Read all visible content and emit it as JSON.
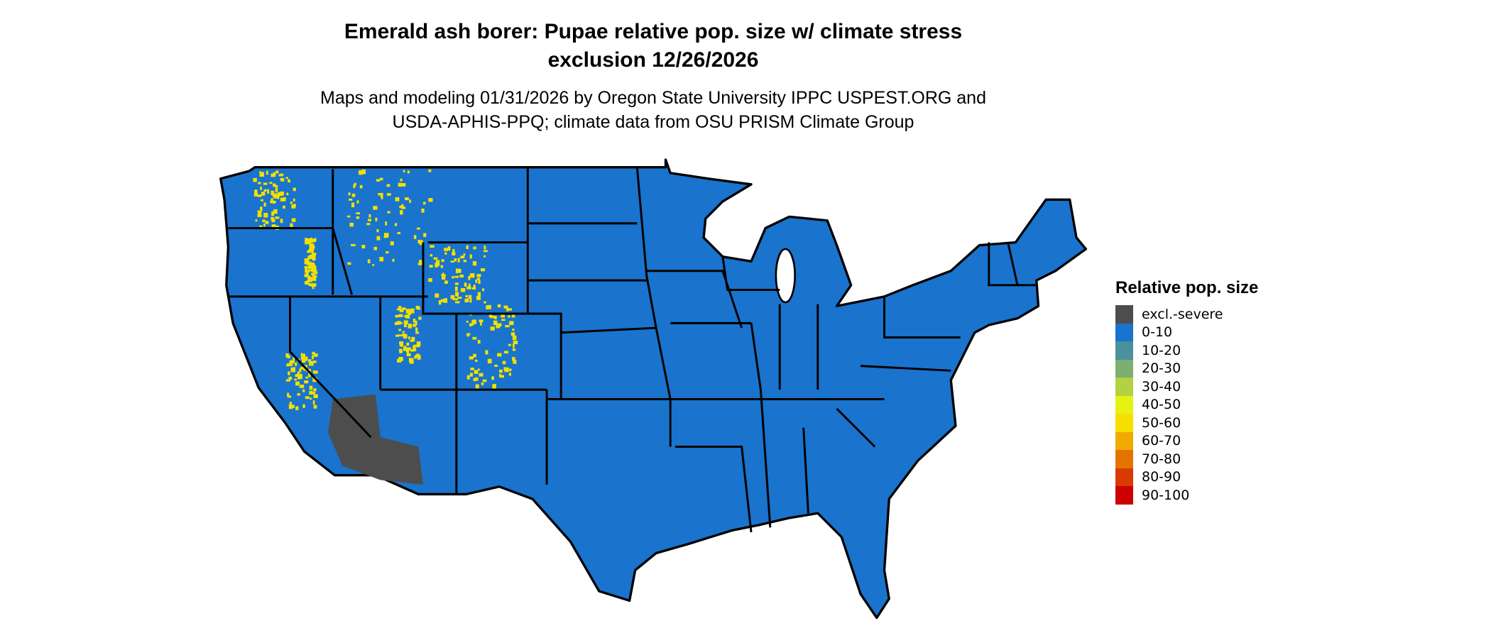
{
  "title_line1": "Emerald ash borer: Pupae relative pop. size w/ climate stress",
  "title_line2": "exclusion 12/26/2026",
  "subtitle_line1": "Maps and modeling 01/31/2026 by Oregon State University IPPC USPEST.ORG and",
  "subtitle_line2": "USDA-APHIS-PPQ; climate data from OSU PRISM Climate Group",
  "map": {
    "region": "Contiguous United States",
    "base_color": "#1a73cc",
    "excluded_color": "#4d4d4d",
    "hotspot_color": "#f0e000",
    "border_color": "#000000"
  },
  "legend": {
    "title": "Relative pop. size",
    "items": [
      {
        "label": "excl.-severe",
        "color": "#4d4d4d"
      },
      {
        "label": "0-10",
        "color": "#1a73cc"
      },
      {
        "label": "10-20",
        "color": "#4a919c"
      },
      {
        "label": "20-30",
        "color": "#7caf72"
      },
      {
        "label": "30-40",
        "color": "#b3d142"
      },
      {
        "label": "40-50",
        "color": "#e6f212"
      },
      {
        "label": "50-60",
        "color": "#f7e000"
      },
      {
        "label": "60-70",
        "color": "#f0aa00"
      },
      {
        "label": "70-80",
        "color": "#e67300"
      },
      {
        "label": "80-90",
        "color": "#d93a00"
      },
      {
        "label": "90-100",
        "color": "#cc0000"
      }
    ]
  }
}
